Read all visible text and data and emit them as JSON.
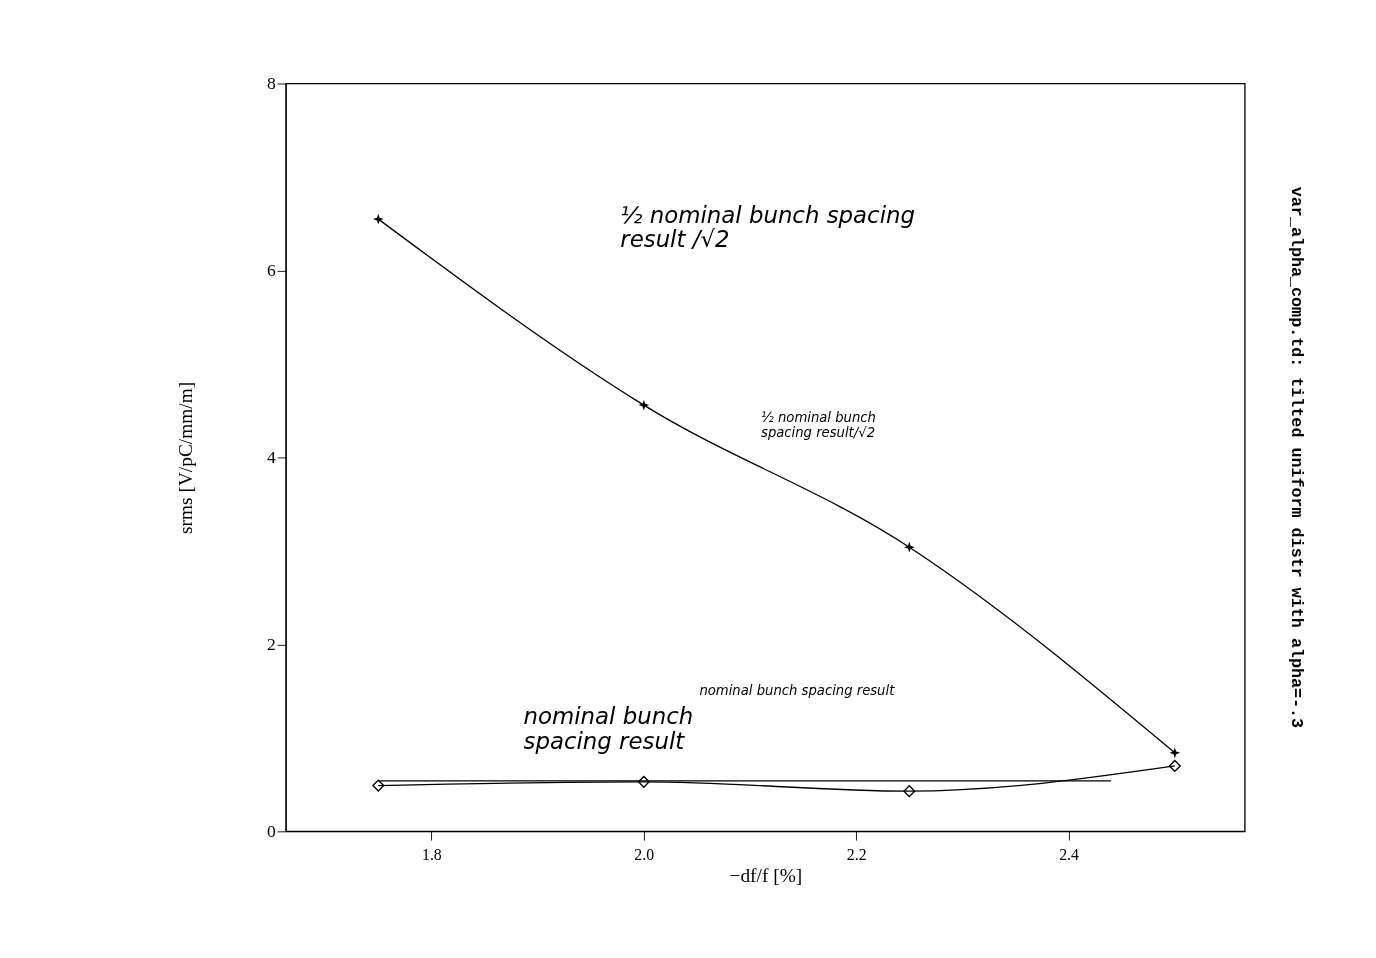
{
  "chart_data": {
    "type": "line",
    "xlabel": "−df/f [%]",
    "ylabel": "srms [V/pC/mm/m]",
    "xlim": [
      1.663,
      2.566
    ],
    "ylim": [
      0,
      8
    ],
    "xticks": [
      1.8,
      {
        "value": 2.0,
        "label": "2.0"
      },
      2.2,
      2.4
    ],
    "yticks": [
      0,
      2,
      4,
      6,
      8
    ],
    "grid": false,
    "line_style": "solid",
    "series": [
      {
        "color": "#000000",
        "marker": "star",
        "x": [
          1.75,
          2.0,
          2.25,
          2.5
        ],
        "values": [
          6.55,
          4.56,
          3.04,
          0.84
        ]
      },
      {
        "color": "#000000",
        "marker": "diamond",
        "x": [
          1.75,
          2.0,
          2.25,
          2.5
        ],
        "values": [
          0.49,
          0.53,
          0.43,
          0.7
        ]
      },
      {
        "color": "#000000",
        "marker": "none",
        "x": [
          1.75,
          2.44
        ],
        "values": [
          0.54,
          0.54
        ]
      }
    ],
    "annotations": [
      "½ nominal bunch spacing\nresult /√2",
      "½ nominal bunch\nspacing result/√2",
      "nominal bunch\nspacing result",
      "nominal bunch spacing result",
      "var_alpha_comp.td: tilted uniform distr with alpha=-.3"
    ]
  }
}
